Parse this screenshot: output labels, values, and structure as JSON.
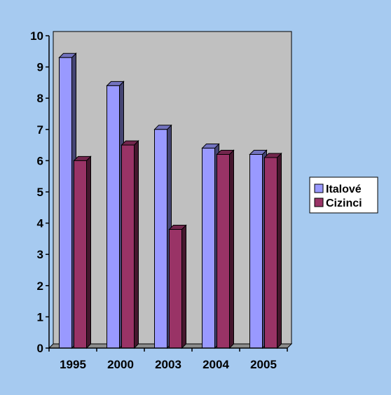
{
  "chart_data": {
    "type": "bar",
    "categories": [
      "1995",
      "2000",
      "2003",
      "2004",
      "2005"
    ],
    "series": [
      {
        "name": "Italové",
        "values": [
          9.3,
          8.4,
          7.0,
          6.4,
          6.2
        ]
      },
      {
        "name": "Cizinci",
        "values": [
          6.0,
          6.5,
          3.8,
          6.2,
          6.1
        ]
      }
    ],
    "ylim": [
      0,
      10
    ],
    "yticks": [
      "0",
      "1",
      "2",
      "3",
      "4",
      "5",
      "6",
      "7",
      "8",
      "9",
      "10"
    ],
    "grid": false,
    "legend_position": "right",
    "colors": {
      "background": "#a6caf0",
      "plot_wall": "#c0c0c0",
      "floor": "#8c8c8c",
      "series": [
        "#9999ff",
        "#993366"
      ]
    }
  }
}
